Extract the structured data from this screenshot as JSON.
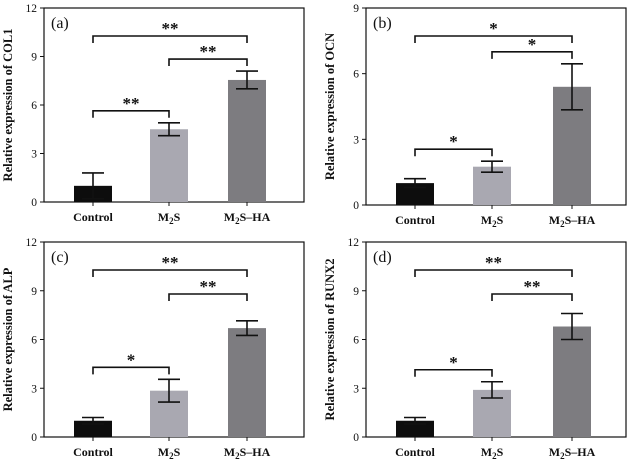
{
  "chart_data": [
    {
      "type": "bar",
      "panel_label": "(a)",
      "ylabel": "Relative expression of COL1",
      "categories": [
        "Control",
        "M2S",
        "M2S–HA"
      ],
      "values": [
        1.0,
        4.5,
        7.55
      ],
      "errors": [
        0.8,
        0.4,
        0.55
      ],
      "ylim": [
        0,
        12
      ],
      "yticks": [
        "0",
        "3",
        "6",
        "9",
        "12"
      ],
      "bar_colors": [
        "#0d0d0d",
        "#a9a8b1",
        "#7d7c80"
      ],
      "significance": [
        {
          "from": 0,
          "to": 1,
          "label": "**"
        },
        {
          "from": 1,
          "to": 2,
          "label": "**"
        },
        {
          "from": 0,
          "to": 2,
          "label": "**"
        }
      ]
    },
    {
      "type": "bar",
      "panel_label": "(b)",
      "ylabel": "Relative expression of OCN",
      "categories": [
        "Control",
        "M2S",
        "M2S–HA"
      ],
      "values": [
        1.0,
        1.75,
        5.4
      ],
      "errors": [
        0.2,
        0.25,
        1.05
      ],
      "ylim": [
        0,
        9
      ],
      "yticks": [
        "0",
        "3",
        "6",
        "9"
      ],
      "bar_colors": [
        "#0d0d0d",
        "#a9a8b1",
        "#7d7c80"
      ],
      "significance": [
        {
          "from": 0,
          "to": 1,
          "label": "*"
        },
        {
          "from": 1,
          "to": 2,
          "label": "*"
        },
        {
          "from": 0,
          "to": 2,
          "label": "*"
        }
      ]
    },
    {
      "type": "bar",
      "panel_label": "(c)",
      "ylabel": "Relative expression of ALP",
      "categories": [
        "Control",
        "M2S",
        "M2S–HA"
      ],
      "values": [
        1.0,
        2.85,
        6.7
      ],
      "errors": [
        0.2,
        0.7,
        0.45
      ],
      "ylim": [
        0,
        12
      ],
      "yticks": [
        "0",
        "3",
        "6",
        "9",
        "12"
      ],
      "bar_colors": [
        "#0d0d0d",
        "#a9a8b1",
        "#7d7c80"
      ],
      "significance": [
        {
          "from": 0,
          "to": 1,
          "label": "*"
        },
        {
          "from": 1,
          "to": 2,
          "label": "**"
        },
        {
          "from": 0,
          "to": 2,
          "label": "**"
        }
      ]
    },
    {
      "type": "bar",
      "panel_label": "(d)",
      "ylabel": "Relative expression of RUNX2",
      "categories": [
        "Control",
        "M2S",
        "M2S–HA"
      ],
      "values": [
        1.0,
        2.9,
        6.8
      ],
      "errors": [
        0.2,
        0.5,
        0.8
      ],
      "ylim": [
        0,
        12
      ],
      "yticks": [
        "0",
        "3",
        "6",
        "9",
        "12"
      ],
      "bar_colors": [
        "#0d0d0d",
        "#a9a8b1",
        "#7d7c80"
      ],
      "significance": [
        {
          "from": 0,
          "to": 1,
          "label": "*"
        },
        {
          "from": 1,
          "to": 2,
          "label": "**"
        },
        {
          "from": 0,
          "to": 2,
          "label": "**"
        }
      ]
    }
  ]
}
